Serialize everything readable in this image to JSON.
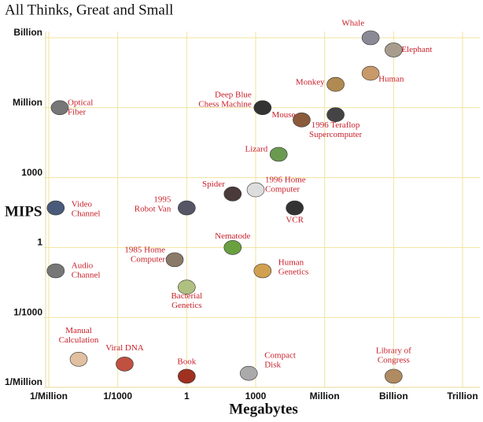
{
  "chart_data": {
    "type": "scatter",
    "title": "All Thinks, Great and Small",
    "xlabel": "Megabytes",
    "ylabel": "MIPS",
    "xscale": "log",
    "yscale": "log",
    "grid": true,
    "xlim": [
      1e-06,
      1000000000000
    ],
    "ylim": [
      1e-06,
      1000000000
    ],
    "xticks": [
      {
        "value": 1e-06,
        "label": "1/Million"
      },
      {
        "value": 0.001,
        "label": "1/1000"
      },
      1,
      1000,
      {
        "value": 1000000,
        "label": "Million"
      },
      {
        "value": 1000000000,
        "label": "Billion"
      },
      {
        "value": 1000000000000,
        "label": "Trillion"
      }
    ],
    "yticks": [
      {
        "value": 1e-06,
        "label": "1/Million"
      },
      {
        "value": 0.001,
        "label": "1/1000"
      },
      1,
      1000,
      {
        "value": 1000000,
        "label": "Million"
      },
      {
        "value": 1000000000,
        "label": "Billion"
      }
    ],
    "color": "#c8202a",
    "points": [
      {
        "label": [
          "Whale"
        ],
        "x": 100000000,
        "y": 1000000000
      },
      {
        "label": [
          "Elephant"
        ],
        "x": 1000000000,
        "y": 300000000
      },
      {
        "label": [
          "Human"
        ],
        "x": 100000000,
        "y": 30000000
      },
      {
        "label": [
          "Monkey"
        ],
        "x": 3000000,
        "y": 10000000
      },
      {
        "label": [
          "Deep Blue",
          "Chess Machine"
        ],
        "x": 2000,
        "y": 1000000
      },
      {
        "label": [
          "Mouse"
        ],
        "x": 100000,
        "y": 300000
      },
      {
        "label": [
          "1996 Teraflop",
          "Supercomputer"
        ],
        "x": 3000000,
        "y": 500000
      },
      {
        "label": [
          "Optical",
          "Fiber"
        ],
        "x": 3e-06,
        "y": 1000000
      },
      {
        "label": [
          "Lizard"
        ],
        "x": 10000,
        "y": 10000
      },
      {
        "label": [
          "Spider"
        ],
        "x": 100,
        "y": 200
      },
      {
        "label": [
          "1996 Home",
          "Computer"
        ],
        "x": 1000,
        "y": 300
      },
      {
        "label": [
          "VCR"
        ],
        "x": 50000,
        "y": 50
      },
      {
        "label": [
          "1995",
          "Robot Van"
        ],
        "x": 1,
        "y": 50
      },
      {
        "label": [
          "Video",
          "Channel"
        ],
        "x": 2e-06,
        "y": 50
      },
      {
        "label": [
          "Nematode"
        ],
        "x": 100,
        "y": 1
      },
      {
        "label": [
          "1985 Home",
          "Computer"
        ],
        "x": 0.3,
        "y": 0.3
      },
      {
        "label": [
          "Audio",
          "Channel"
        ],
        "x": 2e-06,
        "y": 0.1
      },
      {
        "label": [
          "Human",
          "Genetics"
        ],
        "x": 2000,
        "y": 0.1
      },
      {
        "label": [
          "Bacterial",
          "Genetics"
        ],
        "x": 1,
        "y": 0.02
      },
      {
        "label": [
          "Manual",
          "Calculation"
        ],
        "x": 2e-05,
        "y": 1.6e-05
      },
      {
        "label": [
          "Viral DNA"
        ],
        "x": 0.002,
        "y": 1e-05
      },
      {
        "label": [
          "Book"
        ],
        "x": 1,
        "y": 3e-06
      },
      {
        "label": [
          "Compact",
          "Disk"
        ],
        "x": 500,
        "y": 4e-06
      },
      {
        "label": [
          "Library of",
          "Congress"
        ],
        "x": 1000000000,
        "y": 3e-06
      }
    ]
  }
}
